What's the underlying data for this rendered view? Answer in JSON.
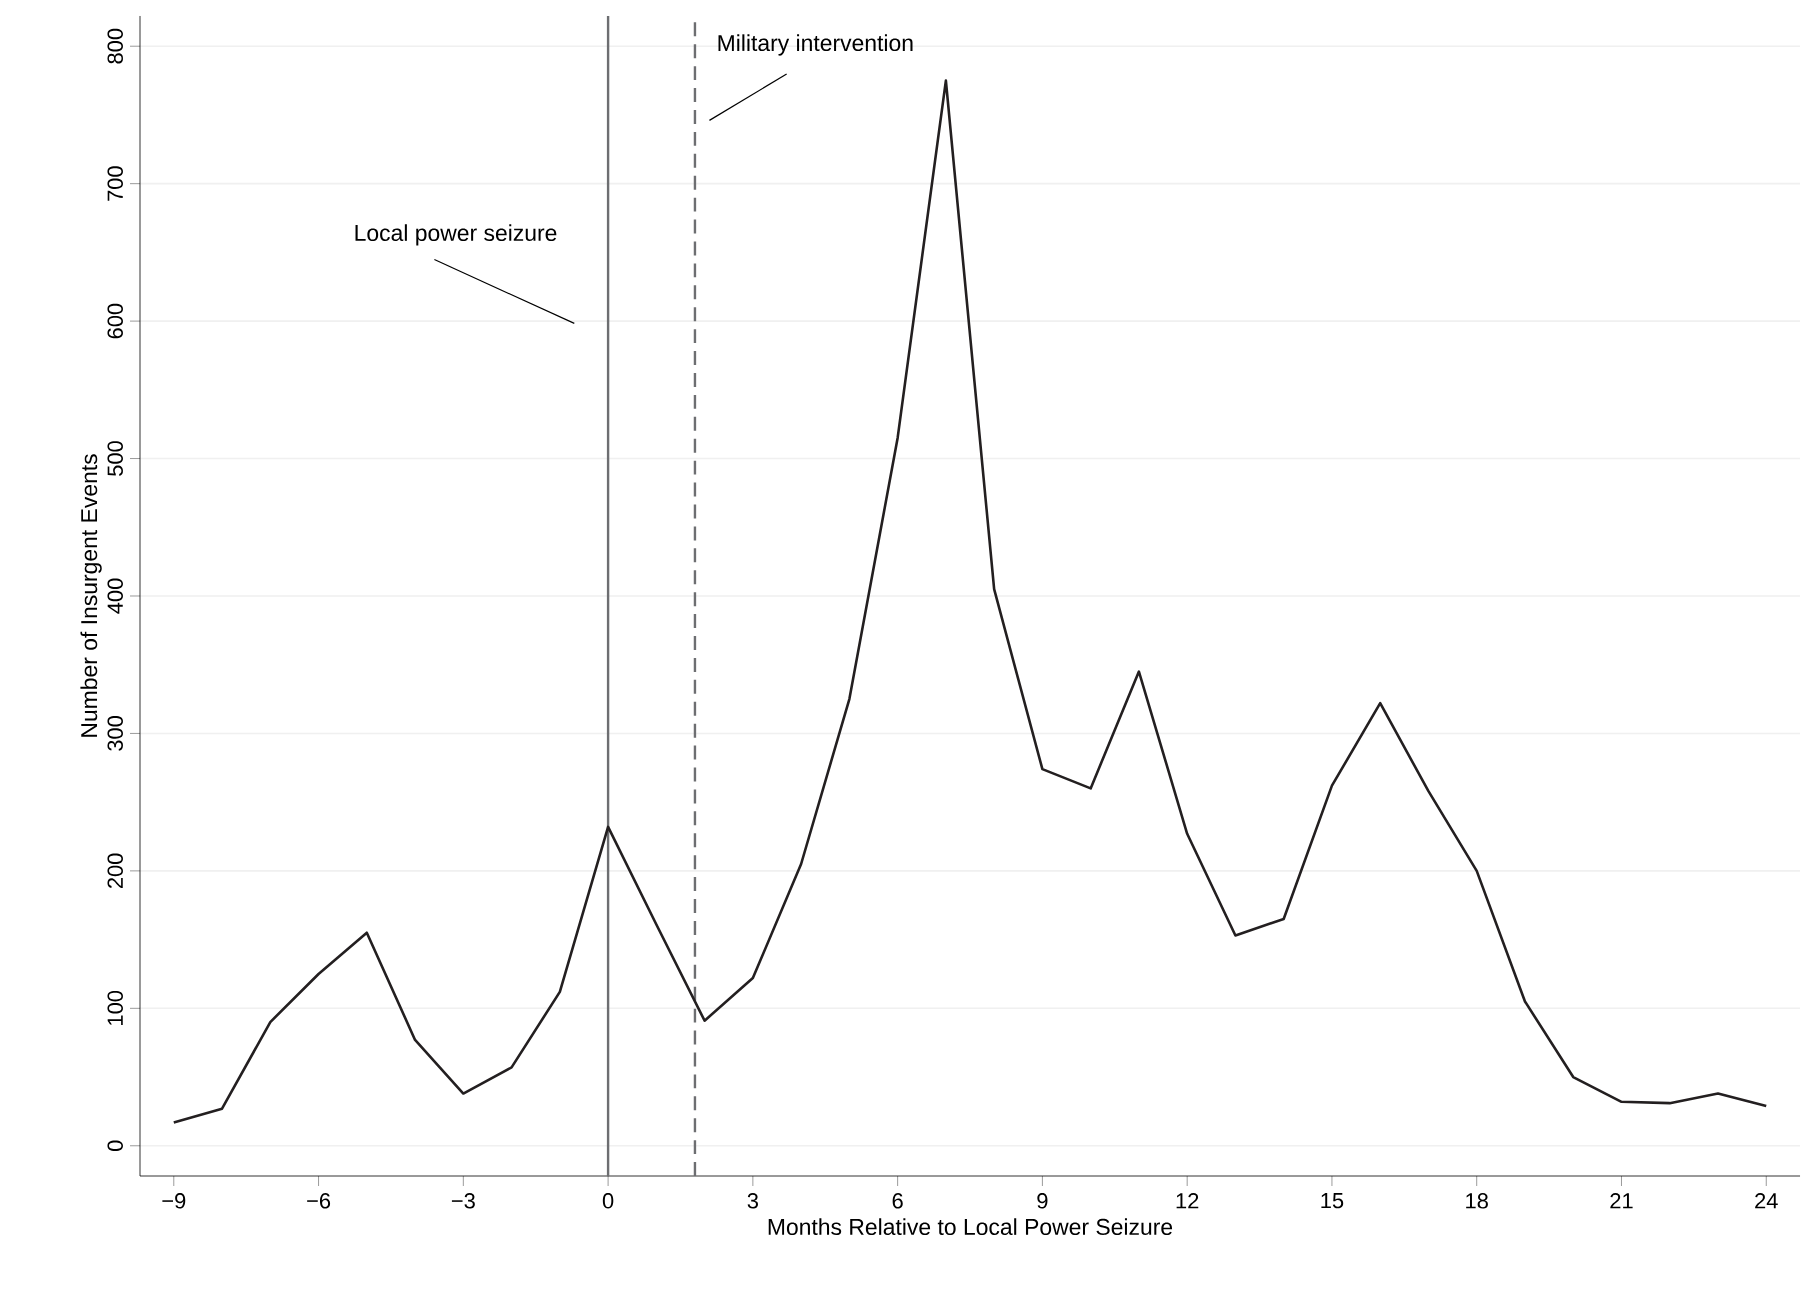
{
  "chart_data": {
    "type": "line",
    "xlabel": "Months Relative to Local Power Seizure",
    "ylabel": "Number of Insurgent Events",
    "x": [
      -9,
      -8,
      -7,
      -6,
      -5,
      -4,
      -3,
      -2,
      -1,
      0,
      1,
      2,
      3,
      4,
      5,
      6,
      7,
      8,
      9,
      10,
      11,
      12,
      13,
      14,
      15,
      16,
      17,
      18,
      19,
      20,
      21,
      22,
      23,
      24
    ],
    "series": [
      {
        "color": "#231f20",
        "values": [
          17,
          27,
          90,
          125,
          155,
          77,
          38,
          57,
          112,
          232,
          161,
          91,
          122,
          205,
          325,
          515,
          775,
          405,
          274,
          260,
          345,
          227,
          153,
          165,
          262,
          322,
          258,
          200,
          105,
          50,
          32,
          31,
          38,
          29
        ]
      }
    ],
    "xlim": [
      -9.7,
      24.7
    ],
    "ylim": [
      -22,
      822
    ],
    "xticks": [
      {
        "value": -9,
        "label": "−9"
      },
      {
        "value": -6,
        "label": "−6"
      },
      {
        "value": -3,
        "label": "−3"
      },
      0,
      3,
      6,
      9,
      12,
      15,
      18,
      21,
      24
    ],
    "yticks": [
      0,
      100,
      200,
      300,
      400,
      500,
      600,
      700,
      800
    ],
    "grid": "y",
    "marker": "none",
    "line_style": "solid",
    "ref_lines": [
      {
        "axis": "x",
        "value": 0,
        "label": "Local power seizure",
        "color": "#6d6e71",
        "line_style": "solid"
      },
      {
        "axis": "x",
        "value": 1.8,
        "label": "Military intervention",
        "color": "#6d6e71",
        "line_style": "dashed"
      }
    ]
  }
}
